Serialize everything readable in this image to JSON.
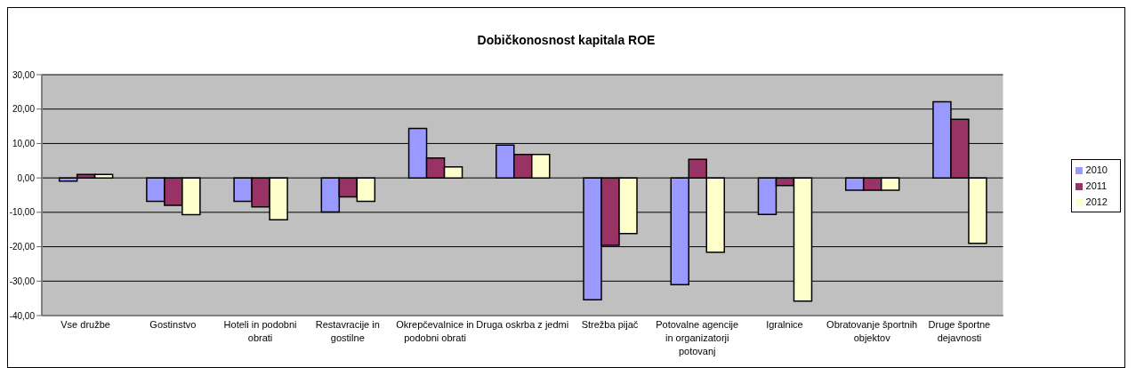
{
  "chart_data": {
    "type": "bar",
    "title": "Dobičkonosnost kapitala ROE",
    "categories": [
      "Vse družbe",
      "Gostinstvo",
      "Hoteli in podobni obrati",
      "Restavracije in gostilne",
      "Okrepčevalnice in podobni obrati",
      "Druga oskrba z jedmi",
      "Strežba pijač",
      "Potovalne agencije in organizatorji potovanj",
      "Igralnice",
      "Obratovanje športnih objektov",
      "Druge športne dejavnosti"
    ],
    "series": [
      {
        "name": "2010",
        "color": "#9999ff",
        "values": [
          -0.9,
          -6.8,
          -6.8,
          -9.9,
          14.4,
          9.5,
          -35.4,
          -31.0,
          -10.6,
          -3.6,
          22.1
        ]
      },
      {
        "name": "2011",
        "color": "#993366",
        "values": [
          1.0,
          -8.0,
          -8.4,
          -5.5,
          5.8,
          6.8,
          -19.6,
          5.4,
          -2.2,
          -3.6,
          17.0
        ]
      },
      {
        "name": "2012",
        "color": "#ffffcc",
        "values": [
          1.0,
          -10.7,
          -12.2,
          -6.8,
          3.2,
          6.8,
          -16.2,
          -21.6,
          -35.8,
          -3.6,
          -19.0
        ]
      }
    ],
    "ylim": [
      -40,
      30
    ],
    "yticks": [
      {
        "value": -40,
        "label": "-40,00"
      },
      {
        "value": -30,
        "label": "-30,00"
      },
      {
        "value": -20,
        "label": "-20,00"
      },
      {
        "value": -10,
        "label": "-10,00"
      },
      {
        "value": 0,
        "label": "0,00"
      },
      {
        "value": 10,
        "label": "10,00"
      },
      {
        "value": 20,
        "label": "20,00"
      },
      {
        "value": 30,
        "label": "30,00"
      }
    ],
    "grid": "y",
    "legend": "right"
  }
}
